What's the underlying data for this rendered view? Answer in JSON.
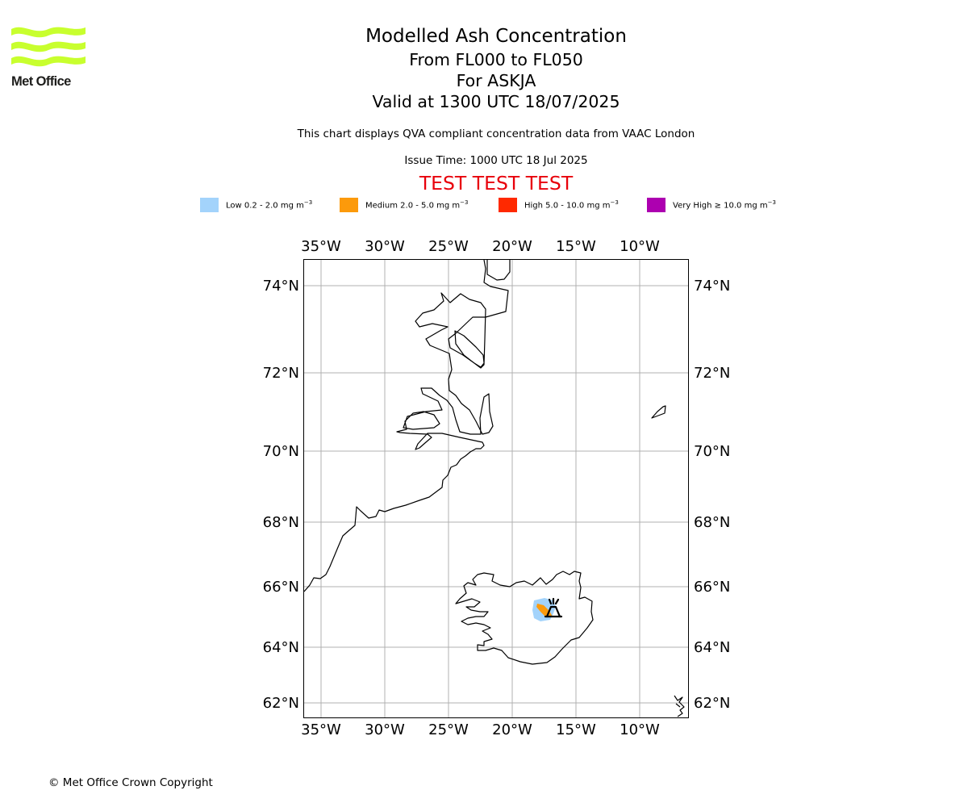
{
  "header": {
    "logo_text": "Met Office",
    "title": "Modelled Ash Concentration",
    "levels": "From FL000 to FL050",
    "volcano": "For ASKJA",
    "valid": "Valid at 1300 UTC 18/07/2025",
    "description": "This chart displays QVA compliant concentration data from VAAC London",
    "issue_time": "Issue Time: 1000 UTC 18 Jul 2025",
    "test_banner": "TEST TEST TEST"
  },
  "legend": [
    {
      "label": "Low 0.2 - 2.0 mg m",
      "unit_exp": "−3",
      "color": "#a3d3fb"
    },
    {
      "label": "Medium 2.0 - 5.0 mg m",
      "unit_exp": "−3",
      "color": "#fc9a0b"
    },
    {
      "label": "High 5.0 - 10.0 mg m",
      "unit_exp": "−3",
      "color": "#ff2900"
    },
    {
      "label": "Very High  ≥  10.0 mg m",
      "unit_exp": "−3",
      "color": "#ad00b0"
    }
  ],
  "map": {
    "lon_ticks": [
      "35°W",
      "30°W",
      "25°W",
      "20°W",
      "15°W",
      "10°W"
    ],
    "lat_ticks": [
      "74°N",
      "72°N",
      "70°N",
      "68°N",
      "66°N",
      "64°N",
      "62°N"
    ],
    "volcano_marker": "volcano-icon",
    "ash_levels_shown": [
      "Low",
      "Medium"
    ]
  },
  "footer": {
    "copyright": "© Met Office Crown Copyright"
  }
}
